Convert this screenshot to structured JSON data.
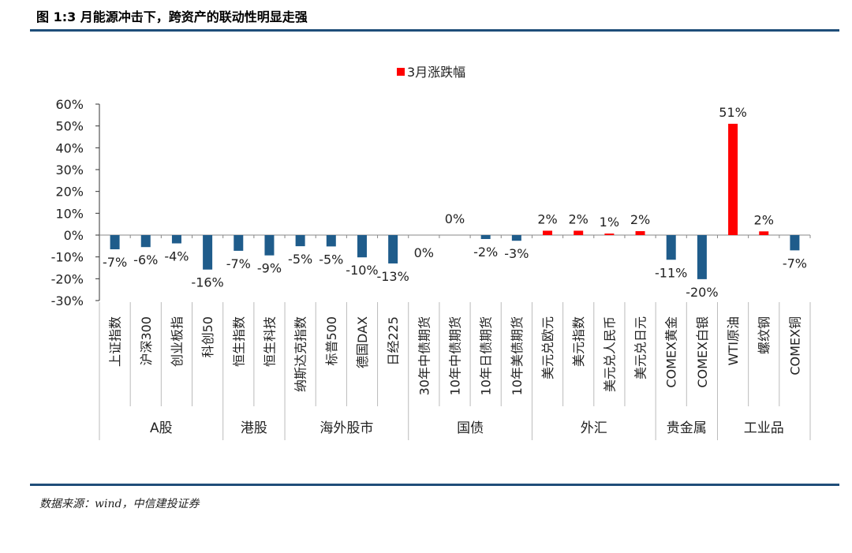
{
  "figure": {
    "title": "图 1:3 月能源冲击下，跨资产的联动性明显走强",
    "source": "数据来源：wind，中信建投证券"
  },
  "colors": {
    "positive": "#ff0000",
    "negative": "#1f5c8b",
    "rule": "#1f4e79"
  },
  "chart_data": {
    "type": "bar",
    "legend": "3月涨跌幅",
    "legend_position": "top-center",
    "ylim": [
      -30,
      60
    ],
    "yticks": [
      "60%",
      "50%",
      "40%",
      "30%",
      "20%",
      "10%",
      "0%",
      "-10%",
      "-20%",
      "-30%"
    ],
    "grid": false,
    "categories": [
      "上证指数",
      "沪深300",
      "创业板指",
      "科创50",
      "恒生指数",
      "恒生科技",
      "纳斯达克指数",
      "标普500",
      "德国DAX",
      "日经225",
      "30年中债期货",
      "10年中债期货",
      "10年日债期货",
      "10年美债期货",
      "美元兑欧元",
      "美元指数",
      "美元兑人民币",
      "美元兑日元",
      "COMEX黄金",
      "COMEX白银",
      "WTI原油",
      "螺纹钢",
      "COMEX铜"
    ],
    "values": [
      -6.5,
      -5.5,
      -3.8,
      -15.8,
      -7.2,
      -9.3,
      -5.1,
      -5.2,
      -10.2,
      -13.0,
      0.0,
      0.0,
      -1.8,
      -2.6,
      2.0,
      2.0,
      0.7,
      1.8,
      -11.3,
      -20.2,
      51.0,
      1.7,
      -7.0
    ],
    "labels": [
      "-7%",
      "-6%",
      "-4%",
      "-16%",
      "-7%",
      "-9%",
      "-5%",
      "-5%",
      "-10%",
      "-13%",
      "0%",
      "0%",
      "-2%",
      "-3%",
      "2%",
      "2%",
      "1%",
      "2%",
      "-11%",
      "-20%",
      "51%",
      "2%",
      "-7%"
    ],
    "groups": [
      {
        "name": "A股",
        "start": 0,
        "count": 4
      },
      {
        "name": "港股",
        "start": 4,
        "count": 2
      },
      {
        "name": "海外股市",
        "start": 6,
        "count": 4
      },
      {
        "name": "国债",
        "start": 10,
        "count": 4
      },
      {
        "name": "外汇",
        "start": 14,
        "count": 4
      },
      {
        "name": "贵金属",
        "start": 18,
        "count": 2
      },
      {
        "name": "工业品",
        "start": 20,
        "count": 3
      }
    ]
  }
}
